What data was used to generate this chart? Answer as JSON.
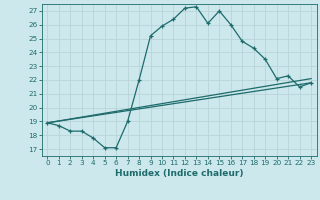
{
  "xlabel": "Humidex (Indice chaleur)",
  "bg_color": "#cce8ed",
  "line_color": "#1e6b6b",
  "grid_color": "#b8d4d8",
  "xlim": [
    -0.5,
    23.5
  ],
  "ylim": [
    16.5,
    27.5
  ],
  "xticks": [
    0,
    1,
    2,
    3,
    4,
    5,
    6,
    7,
    8,
    9,
    10,
    11,
    12,
    13,
    14,
    15,
    16,
    17,
    18,
    19,
    20,
    21,
    22,
    23
  ],
  "yticks": [
    17,
    18,
    19,
    20,
    21,
    22,
    23,
    24,
    25,
    26,
    27
  ],
  "line1_x": [
    0,
    1,
    2,
    3,
    4,
    5,
    6,
    7,
    8,
    9,
    10,
    11,
    12,
    13,
    14,
    15,
    16,
    17,
    18,
    19,
    20,
    21,
    22,
    23
  ],
  "line1_y": [
    18.9,
    18.7,
    18.3,
    18.3,
    17.8,
    17.1,
    17.1,
    19.0,
    22.0,
    25.2,
    25.9,
    26.4,
    27.2,
    27.3,
    26.1,
    27.0,
    26.0,
    24.8,
    24.3,
    23.5,
    22.1,
    22.3,
    21.5,
    21.8
  ],
  "line2_x": [
    0,
    23
  ],
  "line2_y": [
    18.9,
    21.8
  ],
  "line3_x": [
    0,
    23
  ],
  "line3_y": [
    18.9,
    22.1
  ],
  "xlabel_fontsize": 6.5,
  "tick_fontsize": 5.2
}
